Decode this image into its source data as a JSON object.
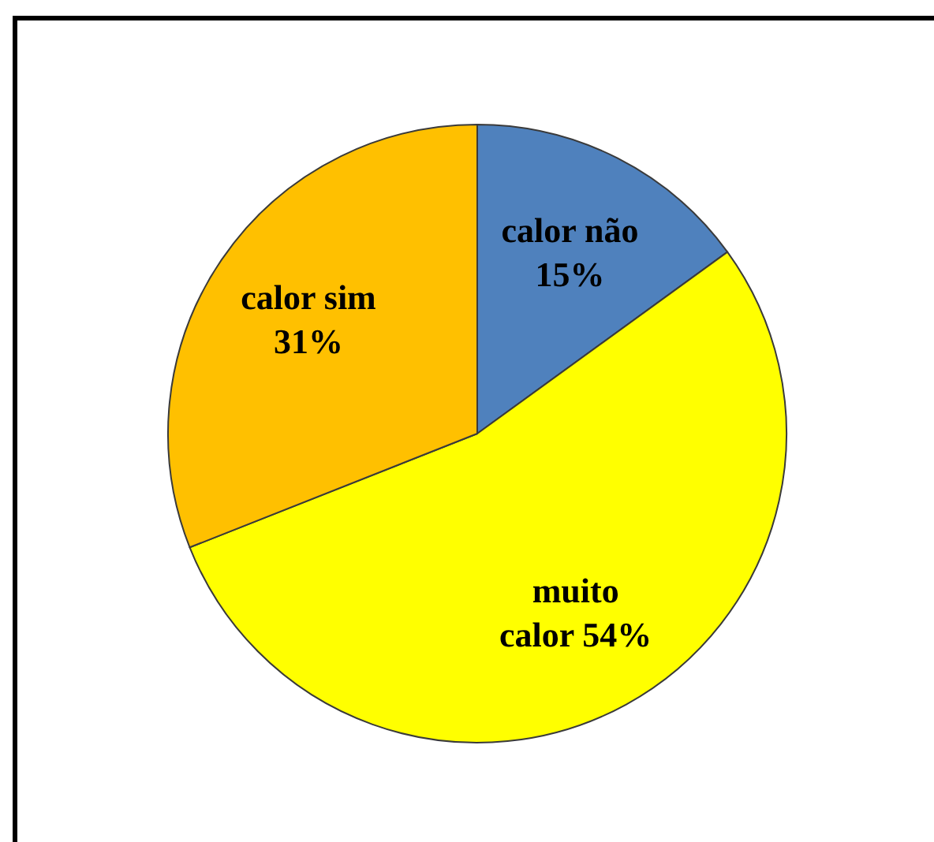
{
  "chart_data": {
    "type": "pie",
    "categories": [
      "calor não",
      "muito calor",
      "calor sim"
    ],
    "values": [
      15,
      54,
      31
    ],
    "colors": [
      "#4f81bd",
      "#ffff00",
      "#ffc000"
    ],
    "value_labels": [
      "15%",
      "54%",
      "31%"
    ]
  }
}
